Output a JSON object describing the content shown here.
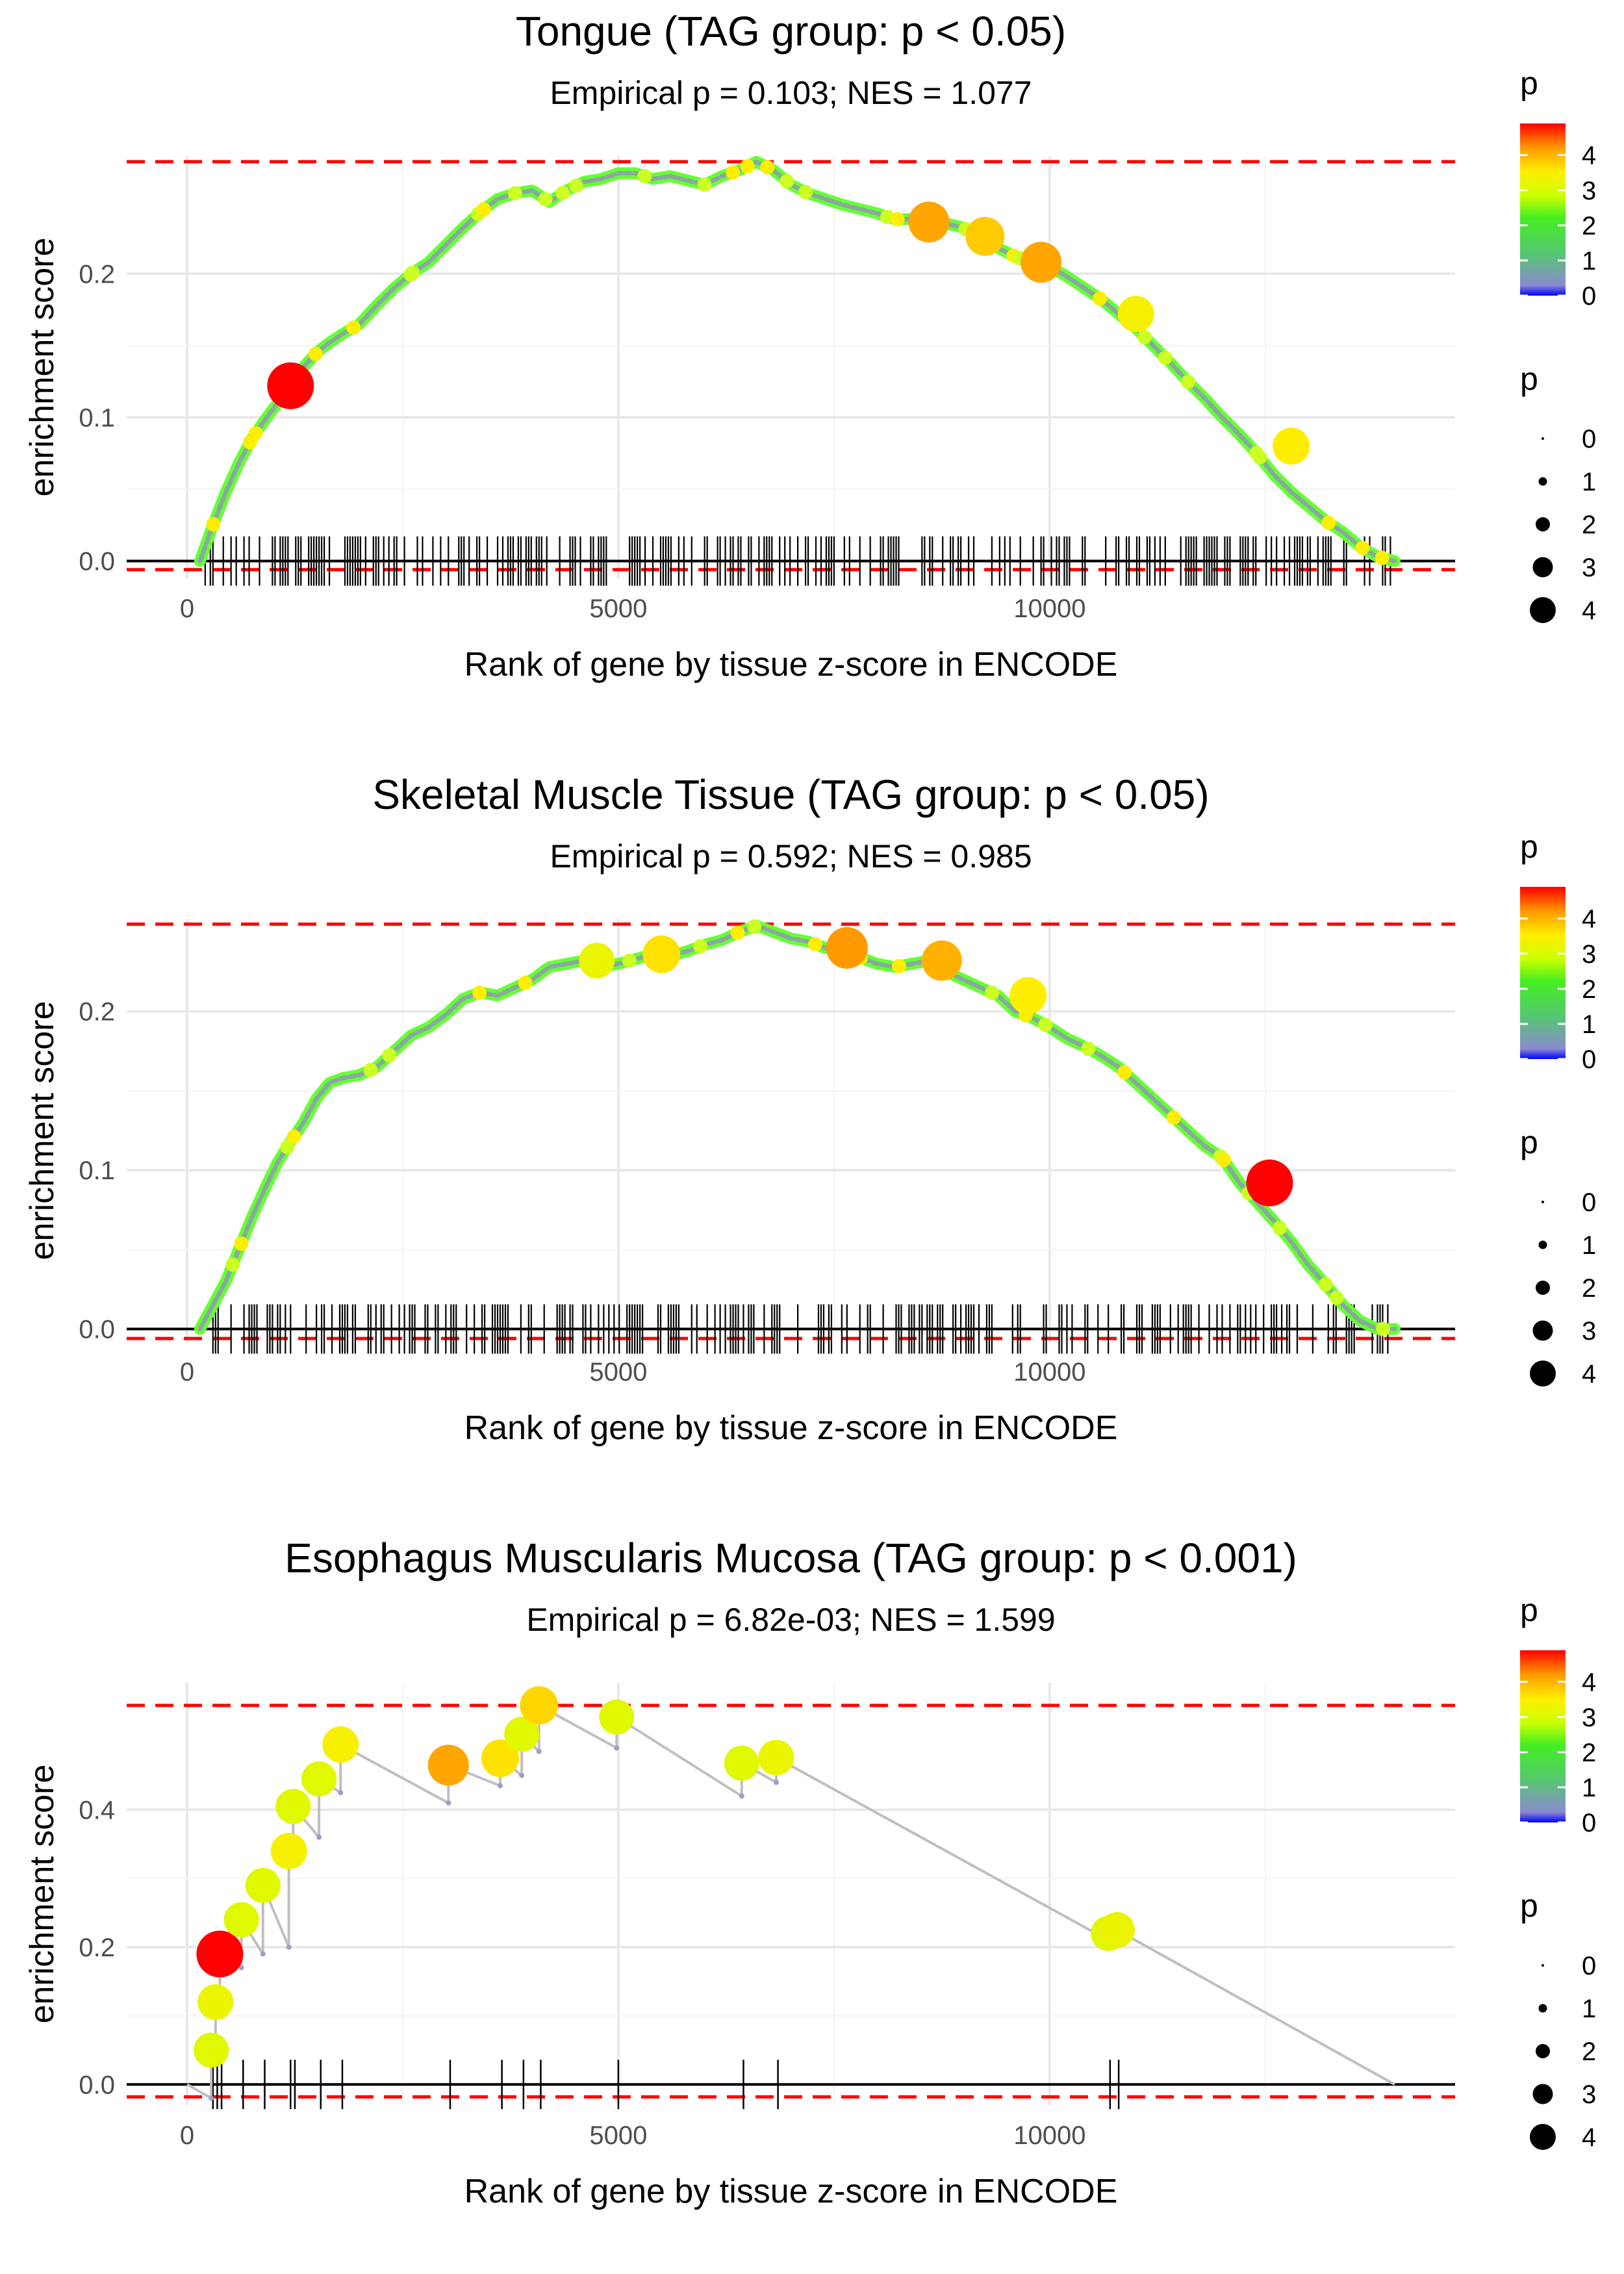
{
  "chart_data": [
    {
      "type": "line",
      "title": "Tongue (TAG group: p < 0.05)",
      "subtitle": "Empirical p = 0.103; NES = 1.077",
      "xlabel": "Rank of gene by tissue z-score in ENCODE",
      "ylabel": "enrichment score",
      "xlim": [
        -700,
        14700
      ],
      "ylim": [
        -0.012,
        0.282
      ],
      "x_ticks": [
        0,
        5000,
        10000
      ],
      "x_tick_labels": [
        "0",
        "5000",
        "10000"
      ],
      "y_ticks": [
        0.0,
        0.1,
        0.2
      ],
      "y_tick_labels": [
        "0.0",
        "0.1",
        "0.2"
      ],
      "hlines": [
        0.278,
        -0.006
      ],
      "x": [
        150,
        300,
        450,
        600,
        750,
        900,
        1050,
        1200,
        1350,
        1500,
        1650,
        1800,
        2000,
        2200,
        2400,
        2600,
        2800,
        3000,
        3200,
        3400,
        3600,
        3800,
        4000,
        4200,
        4400,
        4600,
        4800,
        5000,
        5200,
        5400,
        5600,
        5800,
        6000,
        6200,
        6400,
        6600,
        6800,
        7000,
        7200,
        7400,
        7600,
        7800,
        8000,
        8200,
        8400,
        8600,
        8800,
        9000,
        9200,
        9400,
        9600,
        9800,
        10000,
        10200,
        10400,
        10600,
        10800,
        11000,
        11200,
        11400,
        11600,
        11800,
        12000,
        12200,
        12400,
        12600,
        12800,
        13000,
        13200,
        13400,
        13600,
        13800,
        14000
      ],
      "values": [
        0.0,
        0.025,
        0.048,
        0.068,
        0.085,
        0.098,
        0.11,
        0.122,
        0.135,
        0.145,
        0.152,
        0.158,
        0.165,
        0.178,
        0.19,
        0.2,
        0.208,
        0.22,
        0.232,
        0.243,
        0.252,
        0.256,
        0.258,
        0.25,
        0.258,
        0.264,
        0.266,
        0.27,
        0.27,
        0.266,
        0.268,
        0.265,
        0.262,
        0.268,
        0.272,
        0.278,
        0.272,
        0.262,
        0.256,
        0.252,
        0.248,
        0.245,
        0.242,
        0.238,
        0.238,
        0.236,
        0.235,
        0.232,
        0.225,
        0.218,
        0.212,
        0.208,
        0.205,
        0.198,
        0.19,
        0.182,
        0.172,
        0.162,
        0.15,
        0.138,
        0.125,
        0.113,
        0.1,
        0.088,
        0.075,
        0.06,
        0.048,
        0.038,
        0.028,
        0.02,
        0.01,
        0.003,
        0.0
      ],
      "highlights": [
        {
          "x": 1200,
          "y": 0.122,
          "p": 4.8
        },
        {
          "x": 8600,
          "y": 0.236,
          "p": 3.9
        },
        {
          "x": 9250,
          "y": 0.226,
          "p": 3.6
        },
        {
          "x": 9900,
          "y": 0.208,
          "p": 3.9
        },
        {
          "x": 11000,
          "y": 0.172,
          "p": 3.2
        },
        {
          "x": 12800,
          "y": 0.08,
          "p": 3.3
        }
      ],
      "legend": {
        "color_title": "p",
        "color_ticks": [
          "0",
          "1",
          "2",
          "3",
          "4"
        ],
        "size_title": "p",
        "size_ticks": [
          "0",
          "1",
          "2",
          "3",
          "4"
        ]
      }
    },
    {
      "type": "line",
      "title": "Skeletal Muscle Tissue (TAG group: p < 0.05)",
      "subtitle": "Empirical p = 0.592; NES = 0.985",
      "xlabel": "Rank of gene by tissue z-score in ENCODE",
      "ylabel": "enrichment score",
      "xlim": [
        -700,
        14700
      ],
      "ylim": [
        -0.008,
        0.258
      ],
      "x_ticks": [
        0,
        5000,
        10000
      ],
      "x_tick_labels": [
        "0",
        "5000",
        "10000"
      ],
      "y_ticks": [
        0.0,
        0.1,
        0.2
      ],
      "y_tick_labels": [
        "0.0",
        "0.1",
        "0.2"
      ],
      "hlines": [
        0.255,
        -0.006
      ],
      "x": [
        150,
        300,
        450,
        600,
        750,
        900,
        1050,
        1200,
        1350,
        1500,
        1650,
        1800,
        2000,
        2200,
        2400,
        2600,
        2800,
        3000,
        3200,
        3400,
        3600,
        3800,
        4000,
        4200,
        4400,
        4600,
        4800,
        5000,
        5200,
        5400,
        5600,
        5800,
        6000,
        6200,
        6400,
        6600,
        6800,
        7000,
        7200,
        7400,
        7600,
        7800,
        8000,
        8200,
        8400,
        8600,
        8800,
        9000,
        9200,
        9400,
        9600,
        9800,
        10000,
        10200,
        10400,
        10600,
        10800,
        11000,
        11200,
        11400,
        11600,
        11800,
        12000,
        12200,
        12400,
        12600,
        12800,
        13000,
        13200,
        13400,
        13600,
        13800,
        14000
      ],
      "values": [
        0.0,
        0.015,
        0.03,
        0.05,
        0.07,
        0.088,
        0.105,
        0.118,
        0.13,
        0.145,
        0.155,
        0.158,
        0.16,
        0.165,
        0.175,
        0.185,
        0.19,
        0.198,
        0.208,
        0.212,
        0.21,
        0.215,
        0.22,
        0.228,
        0.23,
        0.232,
        0.228,
        0.23,
        0.233,
        0.236,
        0.235,
        0.238,
        0.242,
        0.245,
        0.25,
        0.254,
        0.25,
        0.246,
        0.244,
        0.24,
        0.238,
        0.234,
        0.23,
        0.228,
        0.23,
        0.232,
        0.225,
        0.22,
        0.215,
        0.21,
        0.2,
        0.196,
        0.19,
        0.183,
        0.178,
        0.172,
        0.165,
        0.155,
        0.145,
        0.135,
        0.125,
        0.115,
        0.108,
        0.092,
        0.08,
        0.068,
        0.055,
        0.04,
        0.028,
        0.015,
        0.005,
        0.0,
        0.0
      ],
      "highlights": [
        {
          "x": 4750,
          "y": 0.232,
          "p": 3.1
        },
        {
          "x": 5500,
          "y": 0.236,
          "p": 3.4
        },
        {
          "x": 7650,
          "y": 0.24,
          "p": 4.0
        },
        {
          "x": 8750,
          "y": 0.232,
          "p": 3.8
        },
        {
          "x": 9750,
          "y": 0.21,
          "p": 3.3
        },
        {
          "x": 12550,
          "y": 0.092,
          "p": 4.8
        }
      ],
      "legend": {
        "color_title": "p",
        "color_ticks": [
          "0",
          "1",
          "2",
          "3",
          "4"
        ],
        "size_title": "p",
        "size_ticks": [
          "0",
          "1",
          "2",
          "3",
          "4"
        ]
      }
    },
    {
      "type": "line",
      "title": "Esophagus Muscularis Mucosa (TAG group: p < 0.001)",
      "subtitle": "Empirical p = 6.82e-03; NES = 1.599",
      "xlabel": "Rank of gene by tissue z-score in ENCODE",
      "ylabel": "enrichment score",
      "xlim": [
        -700,
        14700
      ],
      "ylim": [
        -0.03,
        0.585
      ],
      "x_ticks": [
        0,
        5000,
        10000
      ],
      "x_tick_labels": [
        "0",
        "5000",
        "10000"
      ],
      "y_ticks": [
        0.0,
        0.2,
        0.4
      ],
      "y_tick_labels": [
        "0.0",
        "0.2",
        "0.4"
      ],
      "hlines": [
        0.552,
        -0.018
      ],
      "x": [
        0,
        280,
        280,
        330,
        330,
        380,
        380,
        630,
        630,
        880,
        880,
        1180,
        1180,
        1230,
        1230,
        1530,
        1530,
        1780,
        1780,
        3030,
        3030,
        3630,
        3630,
        3880,
        3880,
        4080,
        4080,
        4980,
        4980,
        6430,
        6430,
        6830,
        6830,
        10680,
        10680,
        10780,
        10780,
        14000
      ],
      "values": [
        0.0,
        -0.02,
        0.05,
        0.04,
        0.12,
        0.11,
        0.19,
        0.17,
        0.24,
        0.19,
        0.29,
        0.2,
        0.34,
        0.33,
        0.405,
        0.36,
        0.445,
        0.425,
        0.495,
        0.41,
        0.465,
        0.435,
        0.475,
        0.45,
        0.51,
        0.485,
        0.552,
        0.49,
        0.535,
        0.42,
        0.468,
        0.44,
        0.476,
        0.21,
        0.22,
        0.215,
        0.225,
        0.0
      ],
      "hits": [
        300,
        350,
        400,
        650,
        900,
        1200,
        1250,
        1550,
        1800,
        3050,
        3650,
        3900,
        4100,
        5000,
        6450,
        6850,
        10700,
        10800
      ],
      "highlights": [
        {
          "x": 280,
          "y": 0.05,
          "p": 3.0
        },
        {
          "x": 330,
          "y": 0.12,
          "p": 3.1
        },
        {
          "x": 380,
          "y": 0.19,
          "p": 4.8
        },
        {
          "x": 630,
          "y": 0.24,
          "p": 3.0
        },
        {
          "x": 880,
          "y": 0.29,
          "p": 3.0
        },
        {
          "x": 1180,
          "y": 0.34,
          "p": 3.2
        },
        {
          "x": 1230,
          "y": 0.405,
          "p": 3.0
        },
        {
          "x": 1530,
          "y": 0.445,
          "p": 3.0
        },
        {
          "x": 1780,
          "y": 0.495,
          "p": 3.2
        },
        {
          "x": 3030,
          "y": 0.465,
          "p": 3.9
        },
        {
          "x": 3630,
          "y": 0.475,
          "p": 3.4
        },
        {
          "x": 3880,
          "y": 0.51,
          "p": 3.0
        },
        {
          "x": 4080,
          "y": 0.552,
          "p": 3.5
        },
        {
          "x": 4980,
          "y": 0.535,
          "p": 3.0
        },
        {
          "x": 6430,
          "y": 0.468,
          "p": 3.0
        },
        {
          "x": 6830,
          "y": 0.476,
          "p": 3.1
        },
        {
          "x": 10680,
          "y": 0.22,
          "p": 3.0
        },
        {
          "x": 10780,
          "y": 0.225,
          "p": 3.1
        }
      ],
      "legend": {
        "color_title": "p",
        "color_ticks": [
          "0",
          "1",
          "2",
          "3",
          "4"
        ],
        "size_title": "p",
        "size_ticks": [
          "0",
          "1",
          "2",
          "3",
          "4"
        ]
      }
    }
  ]
}
